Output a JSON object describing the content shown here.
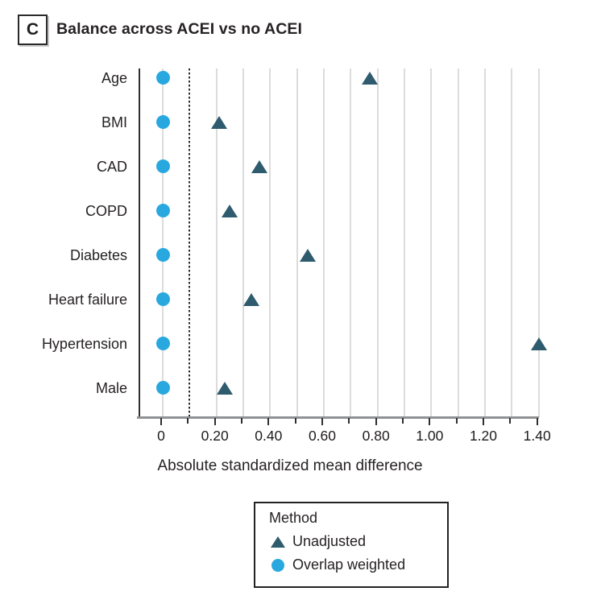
{
  "panel": {
    "label": "C",
    "title": "Balance across ACEI vs no ACEI"
  },
  "chart_data": {
    "type": "scatter",
    "subtype": "horizontal-dot-plot",
    "title": "Balance across ACEI vs no ACEI",
    "categories": [
      "Age",
      "BMI",
      "CAD",
      "COPD",
      "Diabetes",
      "Heart failure",
      "Hypertension",
      "Male"
    ],
    "series": [
      {
        "name": "Unadjusted",
        "marker": "triangle",
        "color": "#2E5B6E",
        "values": [
          0.77,
          0.21,
          0.36,
          0.25,
          0.54,
          0.33,
          1.4,
          0.23
        ]
      },
      {
        "name": "Overlap weighted",
        "marker": "circle",
        "color": "#29A8DF",
        "values": [
          0,
          0,
          0,
          0,
          0,
          0,
          0,
          0
        ]
      }
    ],
    "xlabel": "Absolute standardized mean difference",
    "xlim": [
      0,
      1.4
    ],
    "x_major_ticks": [
      0,
      0.2,
      0.4,
      0.6,
      0.8,
      1.0,
      1.2,
      1.4
    ],
    "x_major_tick_labels": [
      "0",
      "0.20",
      "0.40",
      "0.60",
      "0.80",
      "1.00",
      "1.20",
      "1.40"
    ],
    "x_minor_tick_step": 0.1,
    "reference_line_x": 0.1,
    "gridlines": [
      0,
      0.2,
      0.3,
      0.4,
      0.5,
      0.6,
      0.7,
      0.8,
      0.9,
      1.0,
      1.1,
      1.2,
      1.3,
      1.4
    ],
    "grid_color": "#DCDCDC",
    "reference_line_style": "dotted"
  },
  "legend": {
    "title": "Method",
    "items": [
      {
        "label": "Unadjusted",
        "marker": "triangle",
        "color": "#2E5B6E"
      },
      {
        "label": "Overlap weighted",
        "marker": "circle",
        "color": "#29A8DF"
      }
    ]
  }
}
